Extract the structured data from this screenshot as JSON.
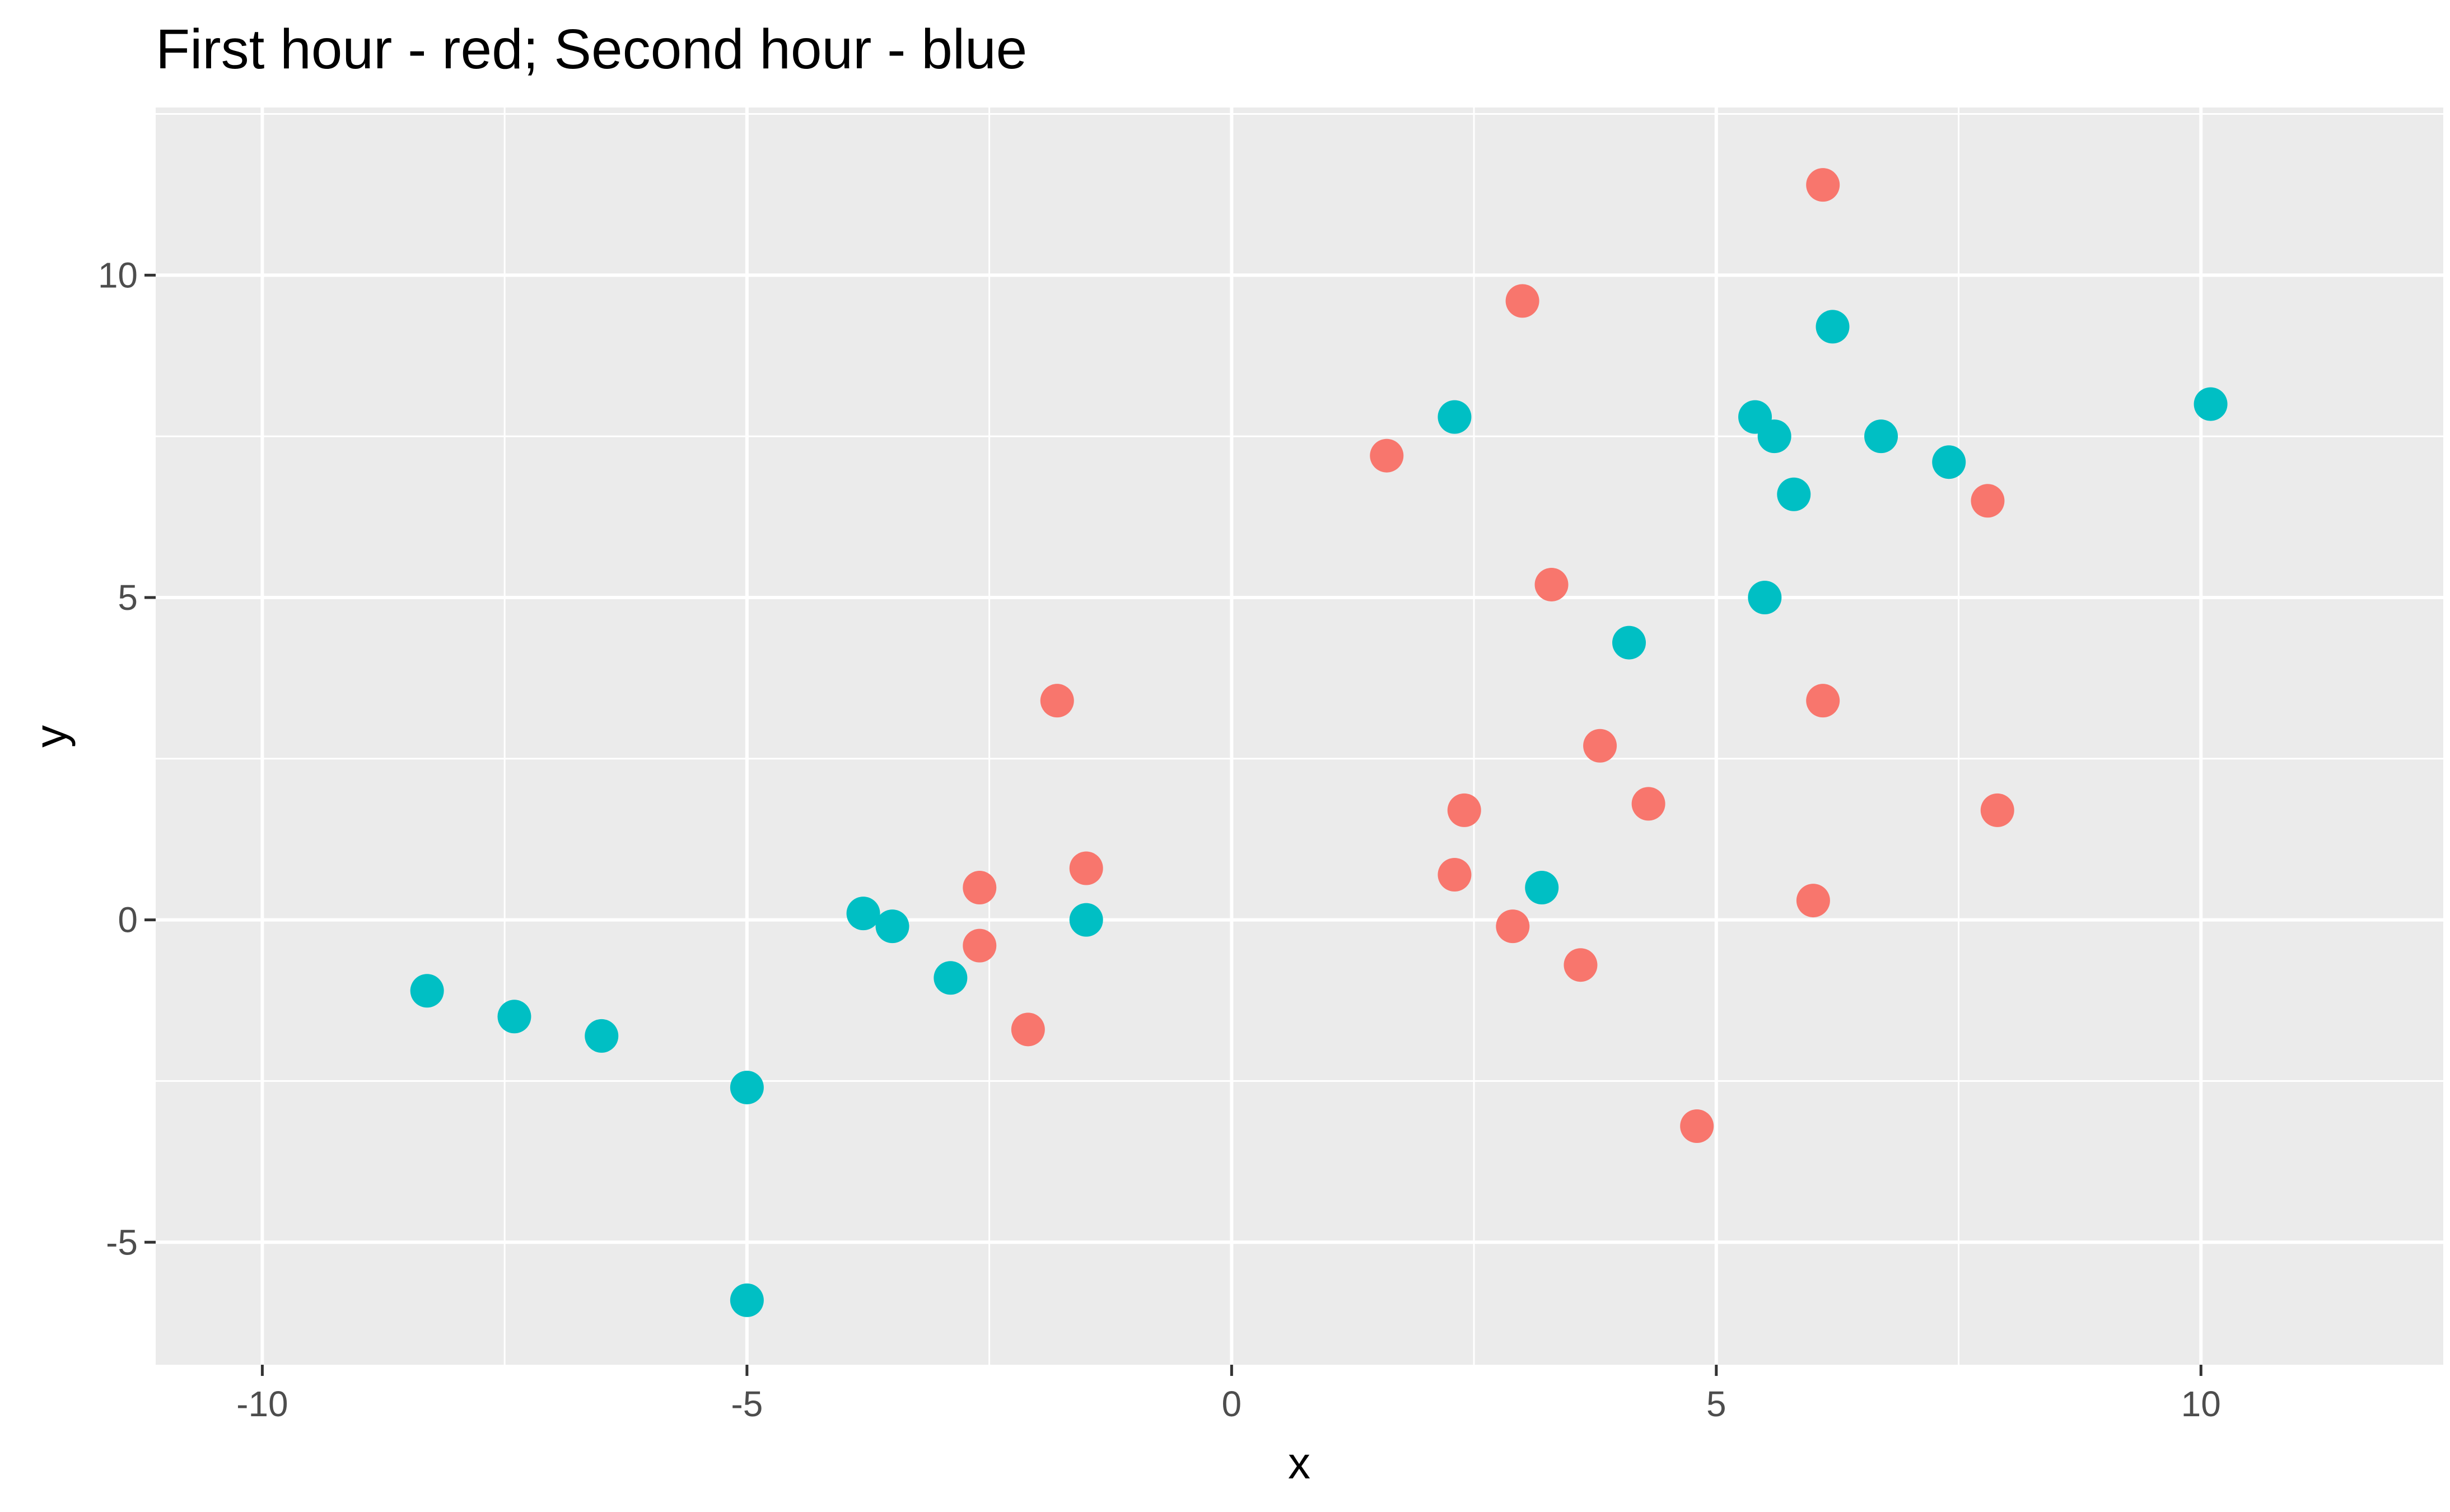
{
  "chart_data": {
    "type": "scatter",
    "title": "First hour - red; Second hour - blue",
    "xlabel": "x",
    "ylabel": "y",
    "xlim": [
      -11.1,
      12.5
    ],
    "ylim": [
      -6.9,
      12.6
    ],
    "x_ticks": [
      -10,
      -5,
      0,
      5,
      10
    ],
    "x_tick_labels": [
      "-10",
      "-5",
      "0",
      "5",
      "10"
    ],
    "y_ticks": [
      -5,
      0,
      5,
      10
    ],
    "y_tick_labels": [
      "-5",
      "0",
      "5",
      "10"
    ],
    "grid": true,
    "legend": "none",
    "background_color": "#ebebeb",
    "grid_color": "#ffffff",
    "series": [
      {
        "color": "#f8766d",
        "points": [
          {
            "x": 6.1,
            "y": 11.4
          },
          {
            "x": 3.0,
            "y": 9.6
          },
          {
            "x": 1.6,
            "y": 7.2
          },
          {
            "x": 7.8,
            "y": 6.5
          },
          {
            "x": 3.3,
            "y": 5.2
          },
          {
            "x": -1.8,
            "y": 3.4
          },
          {
            "x": 6.1,
            "y": 3.4
          },
          {
            "x": 3.8,
            "y": 2.7
          },
          {
            "x": 4.3,
            "y": 1.8
          },
          {
            "x": 2.4,
            "y": 1.7
          },
          {
            "x": 7.9,
            "y": 1.7
          },
          {
            "x": -1.5,
            "y": 0.8
          },
          {
            "x": 2.3,
            "y": 0.7
          },
          {
            "x": -2.6,
            "y": 0.5
          },
          {
            "x": 6.0,
            "y": 0.3
          },
          {
            "x": 2.9,
            "y": -0.1
          },
          {
            "x": -2.6,
            "y": -0.4
          },
          {
            "x": 3.6,
            "y": -0.7
          },
          {
            "x": -2.1,
            "y": -1.7
          },
          {
            "x": 4.8,
            "y": -3.2
          }
        ]
      },
      {
        "color": "#00bfc4",
        "points": [
          {
            "x": 6.2,
            "y": 9.2
          },
          {
            "x": 10.1,
            "y": 8.0
          },
          {
            "x": 2.3,
            "y": 7.8
          },
          {
            "x": 5.4,
            "y": 7.8
          },
          {
            "x": 5.6,
            "y": 7.5
          },
          {
            "x": 6.7,
            "y": 7.5
          },
          {
            "x": 7.4,
            "y": 7.1
          },
          {
            "x": 5.8,
            "y": 6.6
          },
          {
            "x": 5.5,
            "y": 5.0
          },
          {
            "x": 4.1,
            "y": 4.3
          },
          {
            "x": 3.2,
            "y": 0.5
          },
          {
            "x": -3.8,
            "y": 0.1
          },
          {
            "x": -1.5,
            "y": 0.0
          },
          {
            "x": -3.5,
            "y": -0.1
          },
          {
            "x": -2.9,
            "y": -0.9
          },
          {
            "x": -8.3,
            "y": -1.1
          },
          {
            "x": -7.4,
            "y": -1.5
          },
          {
            "x": -6.5,
            "y": -1.8
          },
          {
            "x": -5.0,
            "y": -2.6
          },
          {
            "x": -5.0,
            "y": -5.9
          }
        ]
      }
    ]
  }
}
